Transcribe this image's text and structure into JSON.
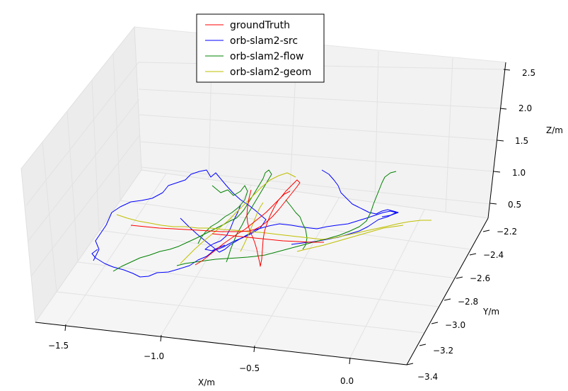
{
  "chart_data": {
    "type": "line",
    "projection": "3d",
    "grid": true,
    "legend_position": "top-center",
    "xlabel": "X/m",
    "ylabel": "Y/m",
    "zlabel": "Z/m",
    "x_ticks": [
      "−1.5",
      "−1.0",
      "−0.5",
      "0.0"
    ],
    "y_ticks": [
      "−2.2",
      "−2.4",
      "−2.6",
      "−2.8",
      "−3.0",
      "−3.2",
      "−3.4"
    ],
    "z_ticks": [
      "0.5",
      "1.0",
      "1.5",
      "2.0",
      "2.5"
    ],
    "series": [
      {
        "name": "groundTruth",
        "color": "#ff0000"
      },
      {
        "name": "orb-slam2-src",
        "color": "#0000ff"
      },
      {
        "name": "orb-slam2-flow",
        "color": "#008000"
      },
      {
        "name": "orb-slam2-geom",
        "color": "#bfbf00"
      }
    ]
  }
}
